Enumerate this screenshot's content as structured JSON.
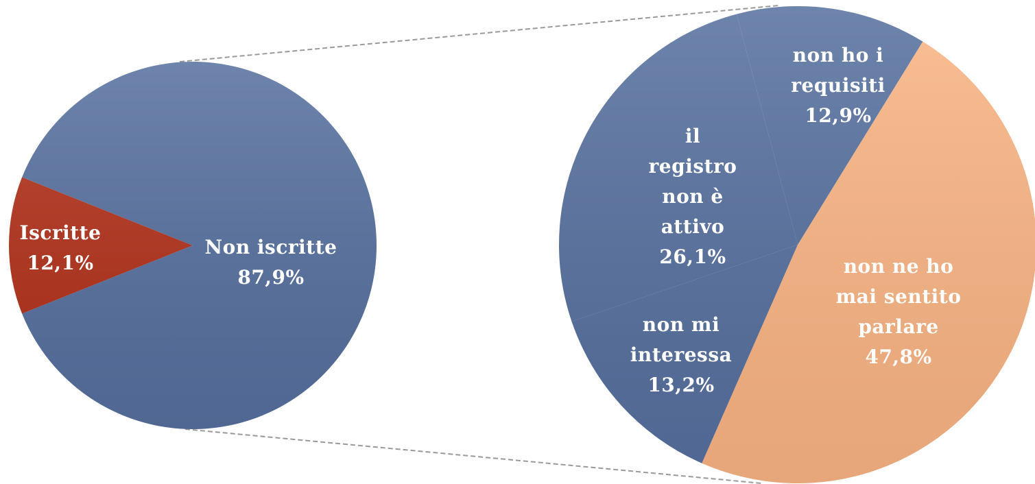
{
  "chart_data": [
    {
      "type": "pie",
      "categories": [
        "Iscritte",
        "Non iscritte"
      ],
      "values": [
        12.1,
        87.9
      ],
      "value_labels": [
        "12,1%",
        "87,9%"
      ],
      "colors": [
        "#b2311a",
        "#56709f"
      ]
    },
    {
      "type": "pie",
      "categories": [
        "non ne ho mai sentito parlare",
        "non mi interessa",
        "il registro non è attivo",
        "non ho i requisiti"
      ],
      "values": [
        47.8,
        13.2,
        26.1,
        12.9
      ],
      "value_labels": [
        "47,8%",
        "13,2%",
        "26,1%",
        "12,9%"
      ],
      "colors": [
        "#fbb584",
        "#56709f",
        "#56709f",
        "#56709f"
      ]
    }
  ]
}
